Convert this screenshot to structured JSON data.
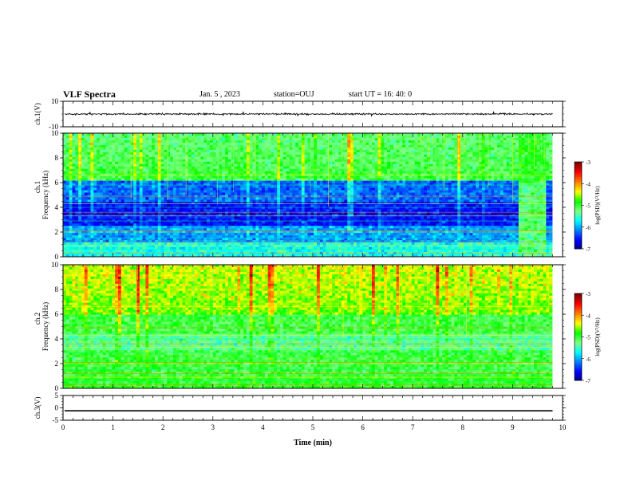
{
  "header": {
    "title": "VLF Spectra",
    "date": "Jan. 5 , 2023",
    "station": "station=OUJ",
    "start": "start UT = 16: 40: 0"
  },
  "chart_data": [
    {
      "type": "line",
      "panel": "ch1-waveform",
      "ylabel": "ch.1(V)",
      "ylim": [
        -10,
        10
      ],
      "y_ticks": [
        "10",
        "-10"
      ],
      "x_range": [
        0,
        10
      ],
      "data_end": 9.8,
      "baseline": 0,
      "envelope": [
        -1,
        1
      ]
    },
    {
      "type": "heatmap",
      "panel": "ch1-spectrogram",
      "ylabel_top": "ch.1",
      "ylabel": "Frequency (kHz)",
      "ylim": [
        0,
        10
      ],
      "y_ticks": [
        "0",
        "2",
        "4",
        "6",
        "8",
        "10"
      ],
      "x_range": [
        0,
        9.8
      ],
      "colorbar": {
        "label": "log(PSD)(V²/Hz)",
        "range": [
          -7,
          -3
        ],
        "ticks": [
          "-3",
          "-4",
          "-5",
          "-6",
          "-7"
        ]
      },
      "strong_lines_khz": [
        0.3,
        0.6,
        0.9,
        1.2,
        1.5,
        2.0,
        2.1,
        2.9,
        3.3,
        3.6,
        4.0,
        4.3,
        4.9,
        5.8,
        6.6
      ],
      "broadband_from_min": 9.1
    },
    {
      "type": "heatmap",
      "panel": "ch2-spectrogram",
      "ylabel_top": "ch.2",
      "ylabel": "Frequency (kHz)",
      "ylim": [
        0,
        10
      ],
      "y_ticks": [
        "0",
        "2",
        "4",
        "6",
        "8",
        "10"
      ],
      "x_range": [
        0,
        9.8
      ],
      "colorbar": {
        "label": "log(PSD)(V²/Hz)",
        "range": [
          -7,
          -3
        ],
        "ticks": [
          "-3",
          "-4",
          "-5",
          "-6",
          "-7"
        ]
      }
    },
    {
      "type": "line",
      "panel": "ch3-waveform",
      "ylabel": "ch.3(V)",
      "ylim": [
        -5,
        5
      ],
      "y_ticks": [
        "5",
        "0",
        "-5"
      ],
      "x_range": [
        0,
        9.8
      ],
      "value": -1.2
    }
  ],
  "x_axis": {
    "label": "Time (min)",
    "ticks": [
      "0",
      "1",
      "2",
      "3",
      "4",
      "5",
      "6",
      "7",
      "8",
      "9",
      "10"
    ]
  },
  "colors": {
    "axis": "#000000",
    "background": "#ffffff",
    "colormap": [
      "#00007f",
      "#0000ff",
      "#0080ff",
      "#00ffff",
      "#80ff80",
      "#00ff00",
      "#ffff00",
      "#ff8000",
      "#ff0000",
      "#800000"
    ]
  }
}
